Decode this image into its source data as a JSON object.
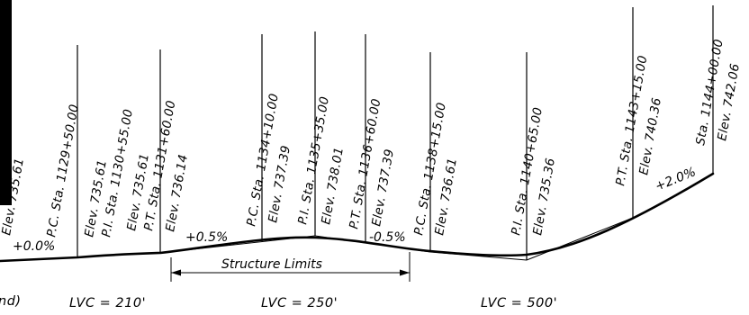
{
  "station_labels": [
    {
      "id": "elev-left-edge",
      "text": "Elev. 735.61"
    },
    {
      "id": "pc-1129",
      "text": "P.C. Sta. 1129+50.00"
    },
    {
      "id": "elev-1",
      "text": "Elev. 735.61"
    },
    {
      "id": "pi-1130",
      "text": "P.I. Sta. 1130+55.00"
    },
    {
      "id": "elev-2",
      "text": "Elev. 735.61"
    },
    {
      "id": "pt-1131",
      "text": "P.T. Sta. 1131+60.00"
    },
    {
      "id": "elev-3",
      "text": "Elev. 736.14"
    },
    {
      "id": "pc-1134",
      "text": "P.C. Sta. 1134+10.00"
    },
    {
      "id": "elev-4",
      "text": "Elev. 737.39"
    },
    {
      "id": "pi-1135",
      "text": "P.I. Sta. 1135+35.00"
    },
    {
      "id": "elev-5",
      "text": "Elev. 738.01"
    },
    {
      "id": "pt-1136",
      "text": "P.T. Sta. 1136+60.00"
    },
    {
      "id": "elev-6",
      "text": "Elev. 737.39"
    },
    {
      "id": "pc-1138",
      "text": "P.C. Sta. 1138+15.00"
    },
    {
      "id": "elev-7",
      "text": "Elev. 736.61"
    },
    {
      "id": "pi-1140",
      "text": "P.I. Sta. 1140+65.00"
    },
    {
      "id": "elev-8",
      "text": "Elev. 735.36"
    },
    {
      "id": "pt-1143",
      "text": "P.T. Sta. 1143+15.00"
    },
    {
      "id": "elev-9",
      "text": "Elev. 740.36"
    },
    {
      "id": "sta-1144",
      "text": "Sta. 1144+00.00"
    },
    {
      "id": "elev-10",
      "text": "Elev. 742.06"
    }
  ],
  "grades": [
    {
      "id": "grade-0",
      "text": "+0.0%"
    },
    {
      "id": "grade-pos-05",
      "text": "+0.5%"
    },
    {
      "id": "grade-neg-05",
      "text": "-0.5%"
    },
    {
      "id": "grade-pos-2",
      "text": "+2.0%"
    }
  ],
  "structure_limits": {
    "text": "Structure Limits"
  },
  "lvc_labels": [
    {
      "id": "lvc-partial",
      "text": "nd)"
    },
    {
      "id": "lvc-210",
      "text": "LVC = 210'"
    },
    {
      "id": "lvc-250",
      "text": "LVC = 250'"
    },
    {
      "id": "lvc-500",
      "text": "LVC = 500'"
    }
  ]
}
